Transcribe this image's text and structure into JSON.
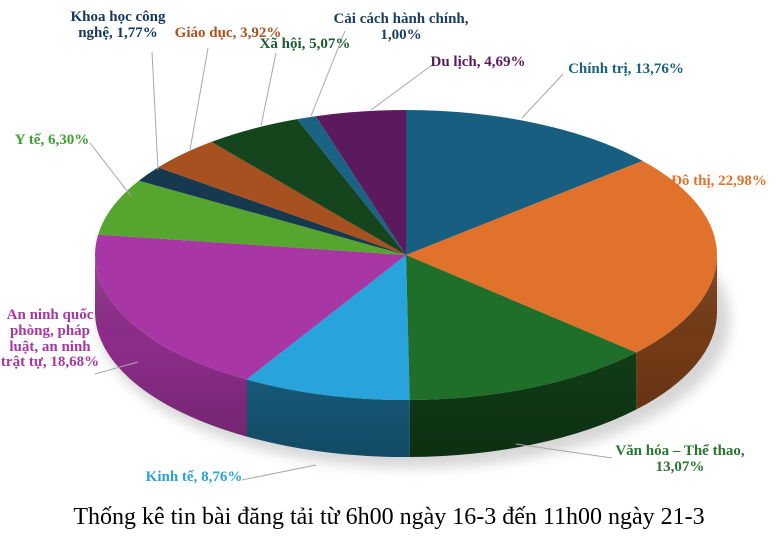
{
  "chart_data": {
    "type": "pie",
    "style": "3d-pie",
    "title": "Thống kê tin bài đăng tải từ 6h00 ngày 16-3 đến 11h00 ngày 21-3",
    "legend": "none",
    "direction": "clockwise",
    "start_angle_deg": 0,
    "background_color": "#FFFFFF",
    "leader_line_color": "#A8A8A8",
    "slices": [
      {
        "label": "Chính trị",
        "value": 13.76,
        "percent_text": "13,76%",
        "display": "Chính trị, 13,76%",
        "color": "#175E80",
        "label_color": "#1A617F"
      },
      {
        "label": "Đô thị",
        "value": 22.98,
        "percent_text": "22,98%",
        "display": "Đô thị, 22,98%",
        "color": "#E0722C",
        "label_color": "#E2732E"
      },
      {
        "label": "Văn hóa – Thể thao",
        "value": 13.07,
        "percent_text": "13,07%",
        "display": "Văn hóa – Thể thao,\n13,07%",
        "color": "#1F6E29",
        "label_color": "#27752F"
      },
      {
        "label": "Kinh tế",
        "value": 8.76,
        "percent_text": "8,76%",
        "display": "Kinh tế, 8,76%",
        "color": "#29A3DC",
        "label_color": "#29A3DC"
      },
      {
        "label": "An ninh quốc phòng, pháp luật, an ninh trật tự",
        "value": 18.68,
        "percent_text": "18,68%",
        "display": "An ninh quốc\nphòng, pháp\nluật, an ninh\ntrật tự, 18,68%",
        "color": "#A836A4",
        "label_color": "#A836A4"
      },
      {
        "label": "Y tế",
        "value": 6.3,
        "percent_text": "6,30%",
        "display": "Y tế, 6,30%",
        "color": "#55A52F",
        "label_color": "#3AA030"
      },
      {
        "label": "Khoa học công nghệ",
        "value": 1.77,
        "percent_text": "1,77%",
        "display": "Khoa học công\nnghệ, 1,77%",
        "color": "#16394F",
        "label_color": "#17375E"
      },
      {
        "label": "Giáo dục",
        "value": 3.92,
        "percent_text": "3,92%",
        "display": "Giáo dục, 3,92%",
        "color": "#A6511F",
        "label_color": "#AF4F1E"
      },
      {
        "label": "Xã hội",
        "value": 5.07,
        "percent_text": "5,07%",
        "display": "Xã hội, 5,07%",
        "color": "#15451D",
        "label_color": "#1E5B31"
      },
      {
        "label": "Cải cách hành chính",
        "value": 1.0,
        "percent_text": "1,00%",
        "display": "Cải cách hành chính,\n1,00%",
        "color": "#1B6384",
        "label_color": "#1D3E62"
      },
      {
        "label": "Du lịch",
        "value": 4.69,
        "percent_text": "4,69%",
        "display": "Du lịch, 4,69%",
        "color": "#5C1A5E",
        "label_color": "#5C1A5E"
      }
    ]
  }
}
